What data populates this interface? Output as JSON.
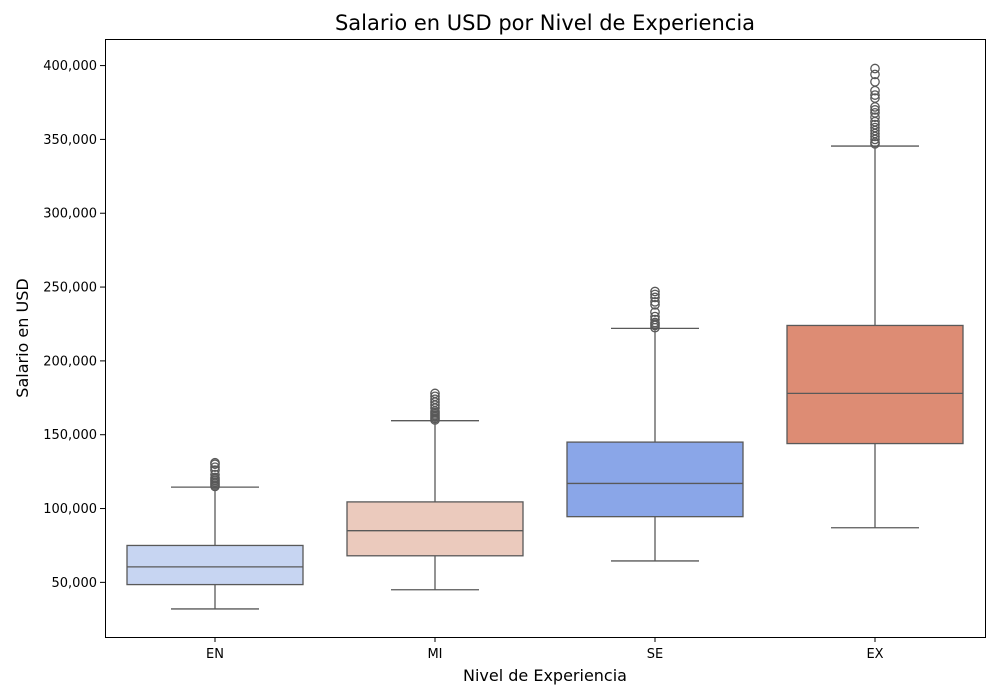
{
  "chart_data": {
    "type": "box",
    "title": "Salario en USD por Nivel de Experiencia",
    "xlabel": "Nivel de Experiencia",
    "ylabel": "Salario en USD",
    "ylim": [
      13000,
      418000
    ],
    "yticks": [
      50000,
      100000,
      150000,
      200000,
      250000,
      300000,
      350000,
      400000
    ],
    "ytick_labels": [
      "50,000",
      "100,000",
      "150,000",
      "200,000",
      "250,000",
      "300,000",
      "350,000",
      "400,000"
    ],
    "grid": false,
    "categories": [
      "EN",
      "MI",
      "SE",
      "EX"
    ],
    "series": [
      {
        "category": "EN",
        "color": "#c7d5f2",
        "whisker_low": 32000,
        "q1": 48500,
        "median": 60500,
        "q3": 75000,
        "whisker_high": 114500,
        "outliers": [
          115000,
          116000,
          117000,
          118000,
          119000,
          120000,
          121000,
          123000,
          126000,
          128000,
          130000,
          131000
        ]
      },
      {
        "category": "MI",
        "color": "#ebcabd",
        "whisker_low": 45000,
        "q1": 68000,
        "median": 85000,
        "q3": 104500,
        "whisker_high": 159500,
        "outliers": [
          160000,
          161000,
          162000,
          163000,
          164000,
          165000,
          166000,
          168000,
          170000,
          172000,
          174000,
          176000,
          178000
        ]
      },
      {
        "category": "SE",
        "color": "#8aa6e8",
        "whisker_low": 64500,
        "q1": 94500,
        "median": 117000,
        "q3": 145000,
        "whisker_high": 222000,
        "outliers": [
          222500,
          224000,
          225000,
          226000,
          228000,
          230000,
          233000,
          238000,
          240000,
          243000,
          245000,
          247000
        ]
      },
      {
        "category": "EX",
        "color": "#dd8c74",
        "whisker_low": 87000,
        "q1": 144000,
        "median": 178000,
        "q3": 224000,
        "whisker_high": 345500,
        "outliers": [
          347000,
          348000,
          350000,
          352000,
          354000,
          356000,
          358000,
          360000,
          362000,
          365000,
          368000,
          370000,
          372000,
          378000,
          380000,
          383000,
          389000,
          394000,
          398000
        ]
      }
    ]
  }
}
